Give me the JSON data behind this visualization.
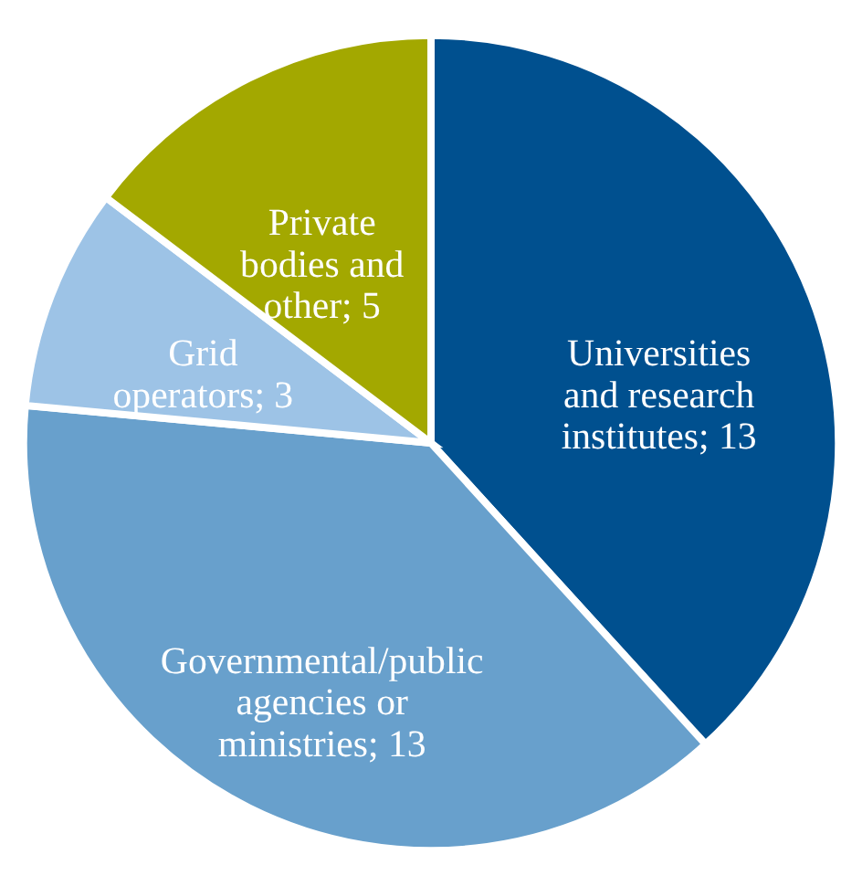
{
  "chart_data": {
    "type": "pie",
    "categories": [
      "Universities and research institutes; 13",
      "Governmental/public agencies or ministries; 13",
      "Grid operators; 3",
      "Private bodies and other; 5"
    ],
    "values": [
      13,
      13,
      3,
      5
    ],
    "colors": [
      "#00508f",
      "#68a0cc",
      "#9dc3e6",
      "#a3a800"
    ],
    "legend": false
  }
}
